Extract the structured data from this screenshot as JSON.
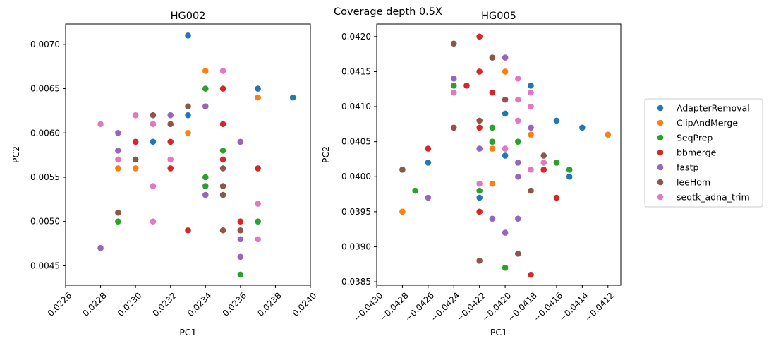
{
  "suptitle": "Coverage depth 0.5X",
  "legend": {
    "placement": "right-outside"
  },
  "series_order": [
    "AdapterRemoval",
    "ClipAndMerge",
    "SeqPrep",
    "bbmerge",
    "fastp",
    "leeHom",
    "seqtk_adna_trim"
  ],
  "colors": {
    "AdapterRemoval": "#1f77b4",
    "ClipAndMerge": "#ff7f0e",
    "SeqPrep": "#2ca02c",
    "bbmerge": "#d62728",
    "fastp": "#9467bd",
    "leeHom": "#8c564b",
    "seqtk_adna_trim": "#e377c2"
  },
  "chart_data": [
    {
      "type": "scatter",
      "title": "HG002",
      "xlabel": "PC1",
      "ylabel": "PC2",
      "xlim": [
        0.0226,
        0.024
      ],
      "ylim": [
        0.00428,
        0.00723
      ],
      "xticks": [
        "0.0226",
        "0.0228",
        "0.0230",
        "0.0232",
        "0.0234",
        "0.0236",
        "0.0238",
        "0.0240"
      ],
      "yticks": [
        "0.0045",
        "0.0050",
        "0.0055",
        "0.0060",
        "0.0065",
        "0.0070"
      ],
      "series": [
        {
          "name": "AdapterRemoval",
          "points": [
            [
              0.0233,
              0.0071
            ],
            [
              0.0237,
              0.0065
            ],
            [
              0.0239,
              0.0064
            ],
            [
              0.0233,
              0.0062
            ],
            [
              0.0231,
              0.0059
            ]
          ]
        },
        {
          "name": "ClipAndMerge",
          "points": [
            [
              0.0234,
              0.0067
            ],
            [
              0.0237,
              0.0064
            ],
            [
              0.0233,
              0.006
            ],
            [
              0.0232,
              0.0061
            ],
            [
              0.0229,
              0.0056
            ],
            [
              0.023,
              0.0056
            ]
          ]
        },
        {
          "name": "SeqPrep",
          "points": [
            [
              0.0234,
              0.0065
            ],
            [
              0.0235,
              0.0058
            ],
            [
              0.0234,
              0.0055
            ],
            [
              0.0234,
              0.0054
            ],
            [
              0.0237,
              0.005
            ],
            [
              0.0229,
              0.005
            ],
            [
              0.0236,
              0.0044
            ]
          ]
        },
        {
          "name": "bbmerge",
          "points": [
            [
              0.0235,
              0.0065
            ],
            [
              0.0235,
              0.0061
            ],
            [
              0.023,
              0.0059
            ],
            [
              0.0232,
              0.0059
            ],
            [
              0.0232,
              0.0056
            ],
            [
              0.0235,
              0.0057
            ],
            [
              0.0237,
              0.0056
            ],
            [
              0.0233,
              0.0049
            ],
            [
              0.0236,
              0.005
            ]
          ]
        },
        {
          "name": "fastp",
          "points": [
            [
              0.0234,
              0.0063
            ],
            [
              0.0232,
              0.0062
            ],
            [
              0.0231,
              0.0061
            ],
            [
              0.0229,
              0.006
            ],
            [
              0.0229,
              0.0058
            ],
            [
              0.0236,
              0.0059
            ],
            [
              0.0234,
              0.0053
            ],
            [
              0.0236,
              0.0048
            ],
            [
              0.0236,
              0.0046
            ],
            [
              0.0228,
              0.0047
            ]
          ]
        },
        {
          "name": "leeHom",
          "points": [
            [
              0.0233,
              0.0063
            ],
            [
              0.0231,
              0.0062
            ],
            [
              0.0232,
              0.0061
            ],
            [
              0.023,
              0.0057
            ],
            [
              0.0235,
              0.0056
            ],
            [
              0.0235,
              0.0054
            ],
            [
              0.0235,
              0.0053
            ],
            [
              0.0229,
              0.0051
            ],
            [
              0.0235,
              0.0049
            ],
            [
              0.0236,
              0.0049
            ]
          ]
        },
        {
          "name": "seqtk_adna_trim",
          "points": [
            [
              0.0235,
              0.0067
            ],
            [
              0.023,
              0.0062
            ],
            [
              0.0228,
              0.0061
            ],
            [
              0.0231,
              0.0061
            ],
            [
              0.0229,
              0.0057
            ],
            [
              0.0232,
              0.0057
            ],
            [
              0.0231,
              0.0054
            ],
            [
              0.0231,
              0.005
            ],
            [
              0.0237,
              0.0052
            ],
            [
              0.0237,
              0.0048
            ]
          ]
        }
      ]
    },
    {
      "type": "scatter",
      "title": "HG005",
      "xlabel": "PC1",
      "ylabel": "PC2",
      "xlim": [
        -0.043,
        -0.0411
      ],
      "ylim": [
        0.03845,
        0.04218
      ],
      "xticks": [
        "−0.0430",
        "−0.0428",
        "−0.0426",
        "−0.0424",
        "−0.0422",
        "−0.0420",
        "−0.0418",
        "−0.0416",
        "−0.0414",
        "−0.0412"
      ],
      "yticks": [
        "0.0385",
        "0.0390",
        "0.0395",
        "0.0400",
        "0.0405",
        "0.0410",
        "0.0415",
        "0.0420"
      ],
      "series": [
        {
          "name": "AdapterRemoval",
          "points": [
            [
              -0.0418,
              0.0413
            ],
            [
              -0.042,
              0.0409
            ],
            [
              -0.0416,
              0.0408
            ],
            [
              -0.0414,
              0.0407
            ],
            [
              -0.042,
              0.0403
            ],
            [
              -0.0426,
              0.0402
            ],
            [
              -0.0415,
              0.04
            ],
            [
              -0.0422,
              0.0397
            ]
          ]
        },
        {
          "name": "ClipAndMerge",
          "points": [
            [
              -0.042,
              0.0415
            ],
            [
              -0.0418,
              0.0406
            ],
            [
              -0.0412,
              0.0406
            ],
            [
              -0.0421,
              0.0404
            ],
            [
              -0.0421,
              0.0399
            ],
            [
              -0.0428,
              0.0395
            ]
          ]
        },
        {
          "name": "SeqPrep",
          "points": [
            [
              -0.0424,
              0.0413
            ],
            [
              -0.0421,
              0.0407
            ],
            [
              -0.0419,
              0.0405
            ],
            [
              -0.0421,
              0.0405
            ],
            [
              -0.0416,
              0.0402
            ],
            [
              -0.0415,
              0.0401
            ],
            [
              -0.0427,
              0.0398
            ],
            [
              -0.0422,
              0.0398
            ],
            [
              -0.042,
              0.0387
            ]
          ]
        },
        {
          "name": "bbmerge",
          "points": [
            [
              -0.0422,
              0.042
            ],
            [
              -0.0422,
              0.0415
            ],
            [
              -0.0423,
              0.0413
            ],
            [
              -0.0421,
              0.0412
            ],
            [
              -0.0422,
              0.0407
            ],
            [
              -0.0426,
              0.0404
            ],
            [
              -0.0417,
              0.0401
            ],
            [
              -0.0416,
              0.0397
            ],
            [
              -0.0422,
              0.0395
            ],
            [
              -0.0418,
              0.0386
            ]
          ]
        },
        {
          "name": "fastp",
          "points": [
            [
              -0.042,
              0.0417
            ],
            [
              -0.0424,
              0.0414
            ],
            [
              -0.0418,
              0.0407
            ],
            [
              -0.0422,
              0.0404
            ],
            [
              -0.0419,
              0.0402
            ],
            [
              -0.0419,
              0.04
            ],
            [
              -0.0426,
              0.0397
            ],
            [
              -0.0421,
              0.0394
            ],
            [
              -0.0419,
              0.0394
            ],
            [
              -0.042,
              0.0392
            ]
          ]
        },
        {
          "name": "leeHom",
          "points": [
            [
              -0.0424,
              0.0419
            ],
            [
              -0.0421,
              0.0417
            ],
            [
              -0.042,
              0.0411
            ],
            [
              -0.0422,
              0.0408
            ],
            [
              -0.0424,
              0.0407
            ],
            [
              -0.0417,
              0.0403
            ],
            [
              -0.0428,
              0.0401
            ],
            [
              -0.0418,
              0.0398
            ],
            [
              -0.0419,
              0.0389
            ],
            [
              -0.0422,
              0.0388
            ]
          ]
        },
        {
          "name": "seqtk_adna_trim",
          "points": [
            [
              -0.0419,
              0.0414
            ],
            [
              -0.0424,
              0.0412
            ],
            [
              -0.0418,
              0.0412
            ],
            [
              -0.0419,
              0.0411
            ],
            [
              -0.0418,
              0.041
            ],
            [
              -0.0419,
              0.0408
            ],
            [
              -0.042,
              0.0404
            ],
            [
              -0.0417,
              0.0402
            ],
            [
              -0.0418,
              0.0401
            ],
            [
              -0.0422,
              0.0399
            ]
          ]
        }
      ]
    }
  ]
}
